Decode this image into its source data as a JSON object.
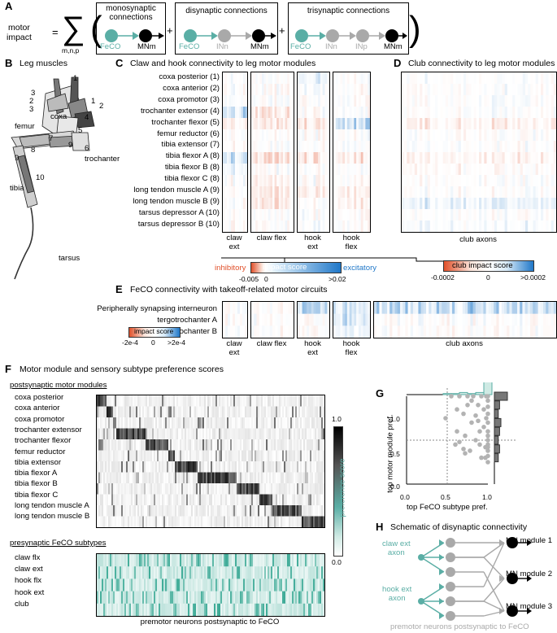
{
  "panelA": {
    "label": "A",
    "lhs": [
      "motor",
      "impact"
    ],
    "equals": "=",
    "sigma": "∑",
    "subscript": "m,n,p",
    "terms": [
      {
        "title": [
          "monosynaptic",
          "connections"
        ],
        "nodes": [
          "FeCO",
          "MNm"
        ]
      },
      {
        "title": [
          "disynaptic connections"
        ],
        "nodes": [
          "FeCO",
          "INn",
          "MNm"
        ]
      },
      {
        "title": [
          "trisynaptic connections"
        ],
        "nodes": [
          "FeCO",
          "INn",
          "INp",
          "MNm"
        ]
      }
    ],
    "plus": "+"
  },
  "panelB": {
    "label": "B",
    "title": "Leg muscles",
    "parts": [
      "coxa",
      "femur",
      "trochanter",
      "tibia",
      "tarsus"
    ],
    "numbers": [
      "3",
      "1",
      "2",
      "3",
      "2",
      "1",
      "4",
      "5",
      "7",
      "8",
      "9",
      "6",
      "9",
      "10"
    ]
  },
  "panelC": {
    "label": "C",
    "title": "Claw and hook connectivity to leg motor modules",
    "rows": [
      "coxa posterior (1)",
      "coxa anterior (2)",
      "coxa promotor (3)",
      "trochanter extensor (4)",
      "trochanter flexor (5)",
      "femur reductor (6)",
      "tibia extensor (7)",
      "tibia flexor A (8)",
      "tibia flexor B (8)",
      "tibia flexor C (8)",
      "long tendon muscle A (9)",
      "long tendon muscle B (9)",
      "tarsus depressor A (10)",
      "tarsus depressor B (10)"
    ],
    "groups": [
      [
        "claw",
        "ext"
      ],
      [
        "claw flex"
      ],
      [
        "hook",
        "ext"
      ],
      [
        "hook",
        "flex"
      ]
    ],
    "legend": {
      "inhibitory": "inhibitory",
      "score": "impact score",
      "excitatory": "excitatory",
      "min": "-0.005",
      "zero": "0",
      "max": ">0.02"
    }
  },
  "panelD": {
    "label": "D",
    "title": "Club connectivity to leg motor modules",
    "xlabel": "club axons",
    "legend": {
      "score": "club impact score",
      "min": "-0.0002",
      "zero": "0",
      "max": ">0.0002"
    }
  },
  "panelE": {
    "label": "E",
    "title": "FeCO connectivity with takeoff-related motor circuits",
    "rows": [
      "Peripherally synapsing interneuron",
      "tergotrochanter A",
      "tergotrochanter B"
    ],
    "groups": [
      [
        "claw",
        "ext"
      ],
      [
        "claw flex"
      ],
      [
        "hook",
        "ext"
      ],
      [
        "hook",
        "flex"
      ],
      [
        "club axons"
      ]
    ],
    "legend": {
      "score": "impact score",
      "min": "-2e-4",
      "zero": "0",
      "max": ">2e-4"
    }
  },
  "panelF": {
    "label": "F",
    "title": "Motor module and sensory subtype preference scores",
    "post_title": "postsynaptic motor modules",
    "post_rows": [
      "coxa posterior",
      "coxa anterior",
      "coxa promotor",
      "trochanter extensor",
      "trochanter flexor",
      "femur reductor",
      "tibia extensor",
      "tibia flexor A",
      "tibia flexor B",
      "tibia flexor C",
      "long tendon muscle A",
      "long tendon muscle B"
    ],
    "pre_title": "presynaptic FeCO subtypes",
    "pre_rows": [
      "claw flx",
      "claw ext",
      "hook flx",
      "hook ext",
      "club"
    ],
    "xlabel": "premotor neurons postsynaptic to FeCO",
    "colorbar": {
      "label": "preference score",
      "max": "1.0",
      "min": "0.0"
    }
  },
  "panelG": {
    "label": "G",
    "xlabel": "top FeCO subtype pref.",
    "ylabel": "top motor module pref.",
    "ticks": [
      "0.0",
      "0.5",
      "1.0"
    ]
  },
  "panelH": {
    "label": "H",
    "title": "Schematic of disynaptic connectivity",
    "axons": [
      [
        "claw ext",
        "axon"
      ],
      [
        "hook ext",
        "axon"
      ]
    ],
    "modules": [
      "MN module 1",
      "MN module 2",
      "MN module 3"
    ],
    "xlabel": "premotor neurons postsynaptic to FeCO"
  },
  "colors": {
    "teal": "#5aaea5",
    "blue": "#1f77c8",
    "red": "#e0502a",
    "grey": "#a9a9a9"
  },
  "chart_data": [
    {
      "type": "scatter",
      "title": "",
      "xlabel": "top FeCO subtype pref.",
      "ylabel": "top motor module pref.",
      "xlim": [
        0,
        1
      ],
      "ylim": [
        0,
        1
      ],
      "x": [
        0.48,
        0.55,
        0.6,
        0.62,
        0.65,
        0.7,
        0.72,
        0.75,
        0.78,
        0.8,
        0.82,
        0.85,
        0.88,
        0.9,
        0.92,
        0.95,
        0.97,
        0.98,
        1.0,
        1.0,
        1.0,
        1.0,
        1.0,
        1.0,
        1.0,
        1.0,
        1.0,
        1.0,
        1.0,
        1.0,
        1.0,
        0.62,
        0.7,
        0.75,
        0.8,
        0.85,
        0.9,
        0.95,
        0.98,
        0.65,
        0.72,
        0.88,
        0.92,
        0.97
      ],
      "y": [
        0.75,
        1.0,
        0.45,
        0.6,
        1.0,
        0.4,
        0.55,
        1.0,
        0.38,
        0.7,
        1.0,
        0.5,
        0.9,
        0.45,
        1.0,
        0.65,
        0.3,
        1.0,
        0.25,
        0.32,
        0.38,
        0.45,
        0.5,
        0.55,
        0.6,
        0.7,
        0.8,
        0.88,
        0.95,
        1.0,
        0.42,
        0.85,
        0.8,
        0.9,
        0.95,
        0.78,
        0.6,
        0.85,
        0.75,
        0.48,
        0.35,
        0.72,
        0.3,
        0.42
      ]
    }
  ]
}
